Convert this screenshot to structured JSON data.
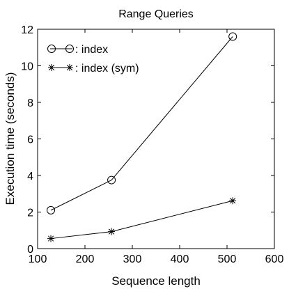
{
  "chart_data": {
    "type": "line",
    "title": "Range Queries",
    "xlabel": "Sequence length",
    "ylabel": "Execution time (seconds)",
    "xlim": [
      100,
      600
    ],
    "ylim": [
      0,
      12
    ],
    "xticks": [
      100,
      200,
      300,
      400,
      500,
      600
    ],
    "yticks": [
      0,
      2,
      4,
      6,
      8,
      10,
      12
    ],
    "grid": false,
    "legend_position": "top-left",
    "series": [
      {
        "name": ": index",
        "marker": "circle",
        "x": [
          128,
          256,
          512
        ],
        "y": [
          2.1,
          3.75,
          11.6
        ]
      },
      {
        "name": ": index (sym)",
        "marker": "star",
        "x": [
          128,
          256,
          512
        ],
        "y": [
          0.55,
          0.93,
          2.62
        ]
      }
    ]
  }
}
